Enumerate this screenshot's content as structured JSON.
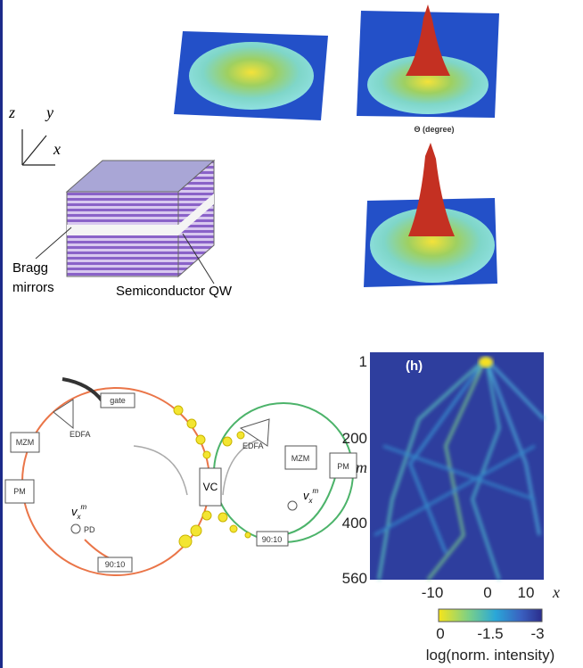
{
  "top_left": {
    "axis_labels": {
      "z": "z",
      "y": "y",
      "x": "x"
    },
    "bragg_label": [
      "Bragg",
      "mirrors"
    ],
    "qw_label": "Semiconductor QW"
  },
  "top_right": {
    "theta_label": "Θ (degree)"
  },
  "ring_diagram": {
    "left_ring": {
      "gate": "gate",
      "edfa": "EDFA",
      "mzm": "MZM",
      "pm": "PM",
      "pd": "PD",
      "coupler": "90:10",
      "signal": {
        "base": "v",
        "sub": "x",
        "sup": "m"
      }
    },
    "center": "VC",
    "right_ring": {
      "edfa": "EDFA",
      "mzm": "MZM",
      "pm": "PM",
      "coupler": "90:10",
      "signal": {
        "base": "v",
        "sub": "x",
        "sup": "m"
      }
    }
  },
  "heatmap": {
    "panel_label": "(h)",
    "y_axis_title": "m",
    "yticks": [
      "1",
      "200",
      "400",
      "560"
    ],
    "xticks": [
      "-10",
      "0",
      "10"
    ],
    "x_axis_title": "x",
    "colorbar_ticks": [
      "0",
      "-1.5",
      "-3"
    ],
    "colorbar_title": "log(norm. intensity)"
  }
}
